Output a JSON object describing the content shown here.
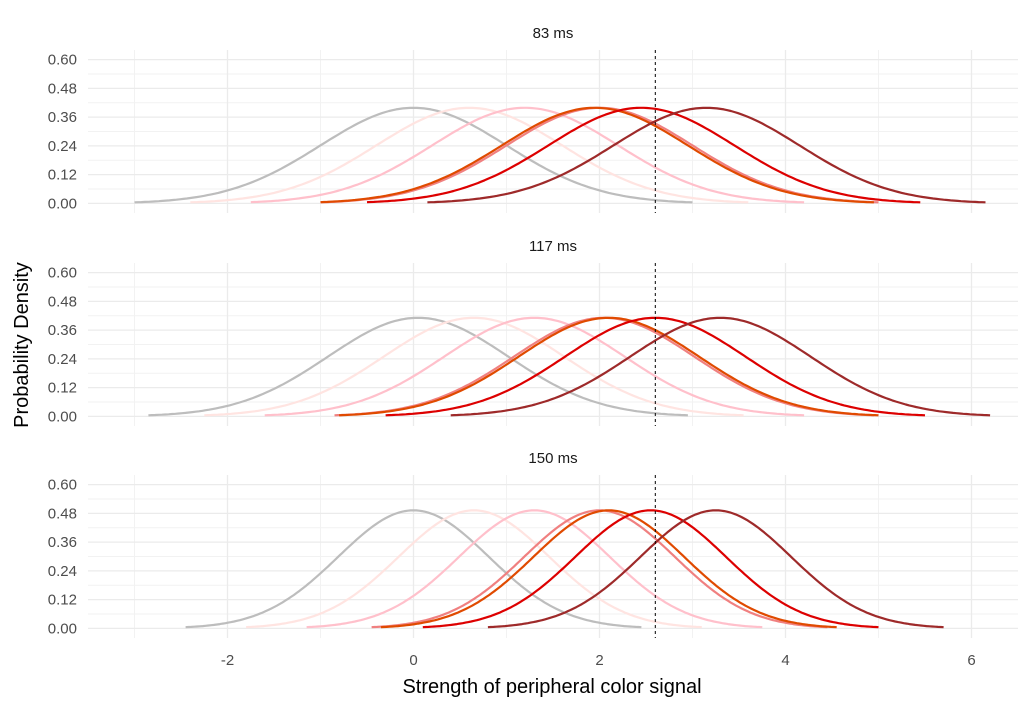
{
  "chart_data": {
    "type": "line",
    "xlabel": "Strength of peripheral color signal",
    "ylabel": "Probability Density",
    "xlim": [
      -3.5,
      6.5
    ],
    "x_ticks": [
      -2,
      0,
      2,
      4,
      6
    ],
    "x_tick_labels": [
      "-2",
      "0",
      "2",
      "4",
      "6"
    ],
    "ylim": [
      -0.04,
      0.64
    ],
    "y_ticks": [
      0,
      0.12,
      0.24,
      0.36,
      0.48,
      0.6
    ],
    "y_tick_labels": [
      "0.00",
      "0.12",
      "0.24",
      "0.36",
      "0.48",
      "0.60"
    ],
    "grid": true,
    "threshold_line": {
      "x": 2.6,
      "style": "dashed",
      "color": "#000000"
    },
    "series_colors": [
      "#bdbdbd",
      "#ffe4e1",
      "#ffc0cb",
      "#f08080",
      "#e04a00",
      "#dd0000",
      "#9e2a2a"
    ],
    "panels": [
      {
        "title": "83 ms",
        "sd": 1.0,
        "series": [
          {
            "color": "#bdbdbd",
            "mean": 0.0,
            "x_range": [
              -3.0,
              3.0
            ]
          },
          {
            "color": "#ffe4e1",
            "mean": 0.6,
            "x_range": [
              -2.4,
              3.6
            ]
          },
          {
            "color": "#ffc0cb",
            "mean": 1.2,
            "x_range": [
              -1.75,
              4.2
            ]
          },
          {
            "color": "#f08080",
            "mean": 2.0,
            "x_range": [
              -1.0,
              5.0
            ]
          },
          {
            "color": "#e04a00",
            "mean": 1.95,
            "x_range": [
              -1.0,
              4.95
            ]
          },
          {
            "color": "#dd0000",
            "mean": 2.45,
            "x_range": [
              -0.5,
              5.45
            ]
          },
          {
            "color": "#9e2a2a",
            "mean": 3.15,
            "x_range": [
              0.15,
              6.15
            ]
          }
        ]
      },
      {
        "title": "117 ms",
        "sd": 0.97,
        "series": [
          {
            "color": "#bdbdbd",
            "mean": 0.05,
            "x_range": [
              -2.85,
              2.95
            ]
          },
          {
            "color": "#ffe4e1",
            "mean": 0.65,
            "x_range": [
              -2.25,
              3.55
            ]
          },
          {
            "color": "#ffc0cb",
            "mean": 1.3,
            "x_range": [
              -1.6,
              4.2
            ]
          },
          {
            "color": "#f08080",
            "mean": 2.05,
            "x_range": [
              -0.85,
              4.95
            ]
          },
          {
            "color": "#e04a00",
            "mean": 2.1,
            "x_range": [
              -0.8,
              5.0
            ]
          },
          {
            "color": "#dd0000",
            "mean": 2.6,
            "x_range": [
              -0.3,
              5.5
            ]
          },
          {
            "color": "#9e2a2a",
            "mean": 3.3,
            "x_range": [
              0.4,
              6.2
            ]
          }
        ]
      },
      {
        "title": "150 ms",
        "sd": 0.81,
        "series": [
          {
            "color": "#bdbdbd",
            "mean": 0.0,
            "x_range": [
              -2.45,
              2.45
            ]
          },
          {
            "color": "#ffe4e1",
            "mean": 0.65,
            "x_range": [
              -1.8,
              3.1
            ]
          },
          {
            "color": "#ffc0cb",
            "mean": 1.3,
            "x_range": [
              -1.15,
              3.75
            ]
          },
          {
            "color": "#f08080",
            "mean": 2.0,
            "x_range": [
              -0.45,
              4.45
            ]
          },
          {
            "color": "#e04a00",
            "mean": 2.1,
            "x_range": [
              -0.35,
              4.55
            ]
          },
          {
            "color": "#dd0000",
            "mean": 2.55,
            "x_range": [
              0.1,
              5.0
            ]
          },
          {
            "color": "#9e2a2a",
            "mean": 3.25,
            "x_range": [
              0.8,
              5.7
            ]
          }
        ]
      }
    ]
  }
}
